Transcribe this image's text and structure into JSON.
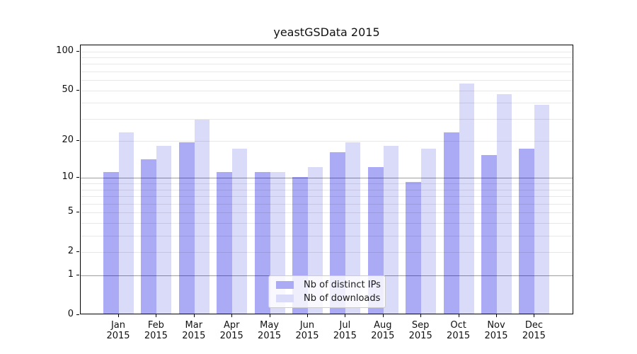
{
  "chart_data": {
    "type": "bar",
    "title": "yeastGSData 2015",
    "months": [
      "Jan",
      "Feb",
      "Mar",
      "Apr",
      "May",
      "Jun",
      "Jul",
      "Aug",
      "Sep",
      "Oct",
      "Nov",
      "Dec"
    ],
    "year": "2015",
    "series": [
      {
        "name": "Nb of distinct IPs",
        "color": "#aaaaf5",
        "values": [
          11,
          14,
          19,
          11,
          11,
          10,
          16,
          12,
          9,
          23,
          15,
          17
        ]
      },
      {
        "name": "Nb of downloads",
        "color": "#dadaf9",
        "values": [
          23,
          18,
          29,
          17,
          11,
          12,
          19,
          18,
          17,
          55,
          46,
          38
        ]
      }
    ],
    "y_axis": {
      "scale": "log1p",
      "tick_labels": [
        0,
        1,
        2,
        5,
        10,
        20,
        50,
        100
      ],
      "gridlines_light": [
        2,
        3,
        4,
        5,
        6,
        7,
        8,
        9,
        20,
        30,
        40,
        50,
        60,
        70,
        80,
        90,
        100
      ],
      "gridlines_dark": [
        1,
        10
      ],
      "ylim_top": 111
    },
    "legend": {
      "position": "bottom-center"
    },
    "background": "#ffffff"
  }
}
